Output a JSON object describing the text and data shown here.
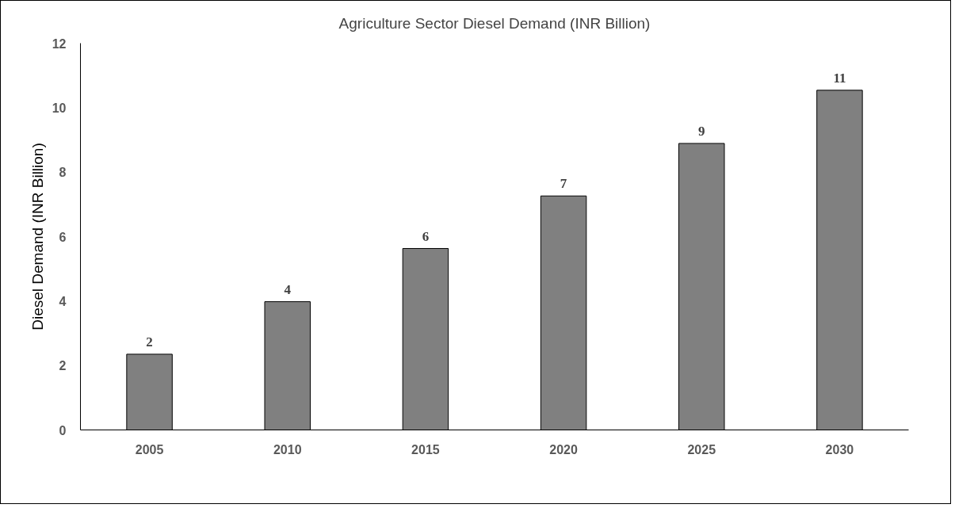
{
  "chart_data": {
    "type": "bar",
    "title": "Agriculture Sector Diesel Demand (INR Billion)",
    "ylabel": "Diesel Demand (INR Billion)",
    "categories": [
      "2005",
      "2010",
      "2015",
      "2020",
      "2025",
      "2030"
    ],
    "values": [
      2.35,
      3.98,
      5.63,
      7.26,
      8.89,
      10.54
    ],
    "value_labels": [
      "2",
      "4",
      "6",
      "7",
      "9",
      "11"
    ],
    "color": "#808080",
    "ylim": [
      0,
      12
    ],
    "yticks": [
      0,
      2,
      4,
      6,
      8,
      10,
      12
    ],
    "grid": false
  }
}
